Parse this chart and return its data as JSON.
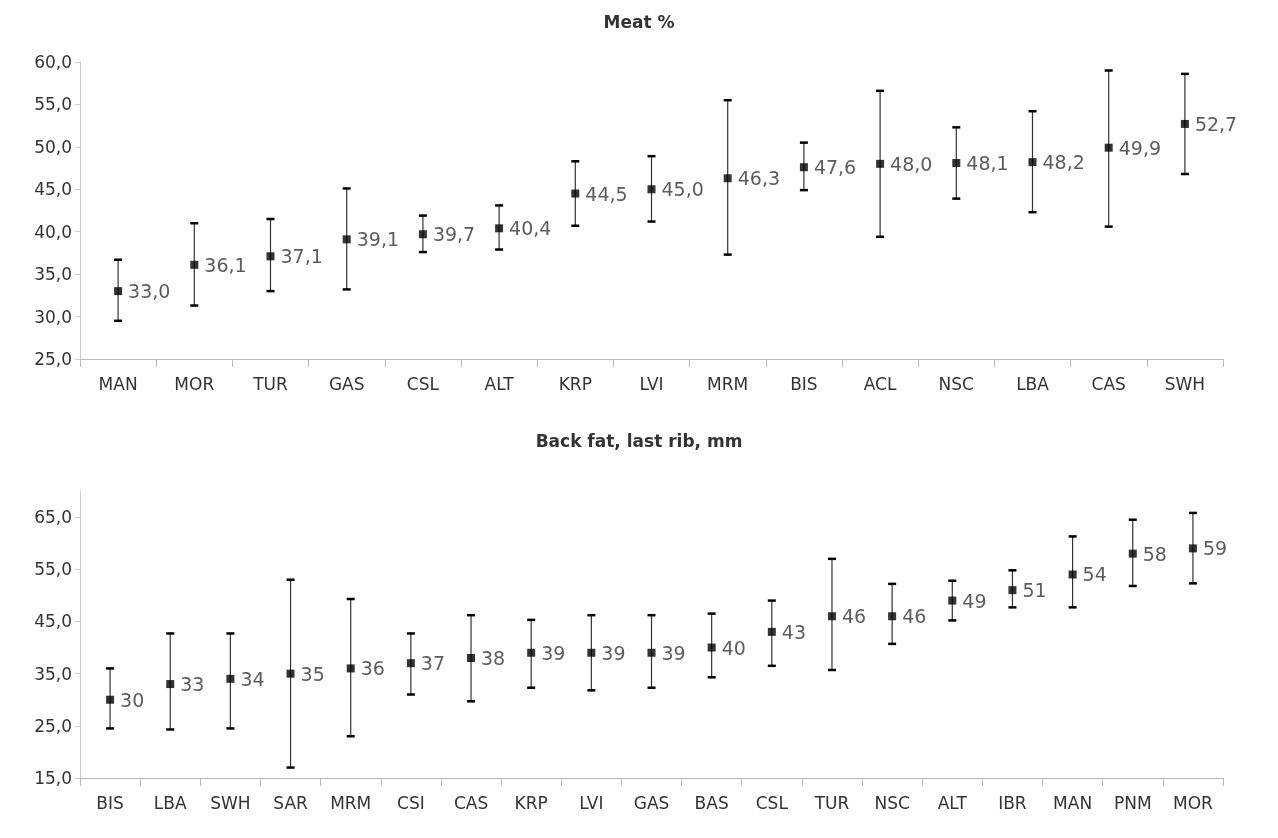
{
  "chart_data": [
    {
      "type": "scatter",
      "title": "Meat %",
      "categories": [
        "MAN",
        "MOR",
        "TUR",
        "GAS",
        "CSL",
        "ALT",
        "KRP",
        "LVI",
        "MRM",
        "BIS",
        "ACL",
        "NSC",
        "LBA",
        "CAS",
        "SWH"
      ],
      "series": [
        {
          "color": "#000000",
          "values": [
            33.0,
            36.1,
            37.1,
            39.1,
            39.7,
            40.4,
            44.5,
            45.0,
            46.3,
            47.6,
            48.0,
            48.1,
            48.2,
            49.9,
            52.7
          ],
          "value_labels": [
            "33,0",
            "36,1",
            "37,1",
            "39,1",
            "39,7",
            "40,4",
            "44,5",
            "45,0",
            "46,3",
            "47,6",
            "48,0",
            "48,1",
            "48,2",
            "49,9",
            "52,7"
          ],
          "errors": [
            [
              29.5,
              36.7
            ],
            [
              31.3,
              41.0
            ],
            [
              33.0,
              41.5
            ],
            [
              33.2,
              45.1
            ],
            [
              37.6,
              41.9
            ],
            [
              37.9,
              43.1
            ],
            [
              40.7,
              48.3
            ],
            [
              41.2,
              48.9
            ],
            [
              37.3,
              55.5
            ],
            [
              44.9,
              50.5
            ],
            [
              39.4,
              56.6
            ],
            [
              43.9,
              52.3
            ],
            [
              42.3,
              54.2
            ],
            [
              40.6,
              59.0
            ],
            [
              46.8,
              58.6
            ]
          ]
        }
      ],
      "ylim": [
        25,
        60
      ],
      "yticks": [
        {
          "value": 25,
          "label": "25,0"
        },
        {
          "value": 30,
          "label": "30,0"
        },
        {
          "value": 35,
          "label": "35,0"
        },
        {
          "value": 40,
          "label": "40,0"
        },
        {
          "value": 45,
          "label": "45,0"
        },
        {
          "value": 50,
          "label": "50,0"
        },
        {
          "value": 55,
          "label": "55,0"
        },
        {
          "value": 60,
          "label": "60,0"
        }
      ],
      "marker": "square",
      "grid": false
    },
    {
      "type": "scatter",
      "title": "Back fat, last rib, mm",
      "categories": [
        "BIS",
        "LBA",
        "SWH",
        "SAR",
        "MRM",
        "CSI",
        "CAS",
        "KRP",
        "LVI",
        "GAS",
        "BAS",
        "CSL",
        "TUR",
        "NSC",
        "ALT",
        "IBR",
        "MAN",
        "PNM",
        "MOR"
      ],
      "series": [
        {
          "color": "#000000",
          "values": [
            30,
            33,
            34,
            35,
            36,
            37,
            38,
            39,
            39,
            39,
            40,
            43,
            46,
            46,
            49,
            51,
            54,
            58,
            59
          ],
          "value_labels": [
            "30",
            "33",
            "34",
            "35",
            "36",
            "37",
            "38",
            "39",
            "39",
            "39",
            "40",
            "43",
            "46",
            "46",
            "49",
            "51",
            "54",
            "58",
            "59"
          ],
          "errors": [
            [
              24.5,
              36.0
            ],
            [
              24.3,
              42.7
            ],
            [
              24.5,
              42.7
            ],
            [
              17.0,
              53.0
            ],
            [
              23.0,
              49.3
            ],
            [
              31.0,
              42.7
            ],
            [
              29.7,
              46.2
            ],
            [
              32.3,
              45.3
            ],
            [
              31.8,
              46.2
            ],
            [
              32.3,
              46.2
            ],
            [
              34.3,
              46.5
            ],
            [
              36.5,
              49.0
            ],
            [
              35.7,
              57.0
            ],
            [
              40.7,
              52.2
            ],
            [
              45.2,
              52.8
            ],
            [
              47.7,
              54.8
            ],
            [
              47.7,
              61.3
            ],
            [
              51.8,
              64.5
            ],
            [
              52.3,
              65.8
            ]
          ]
        }
      ],
      "ylim": [
        15,
        70
      ],
      "yticks": [
        {
          "value": 15,
          "label": "15,0"
        },
        {
          "value": 25,
          "label": "25,0"
        },
        {
          "value": 35,
          "label": "35,0"
        },
        {
          "value": 45,
          "label": "45,0"
        },
        {
          "value": 55,
          "label": "55,0"
        },
        {
          "value": 65,
          "label": "65,0"
        }
      ],
      "marker": "square",
      "grid": false
    }
  ]
}
